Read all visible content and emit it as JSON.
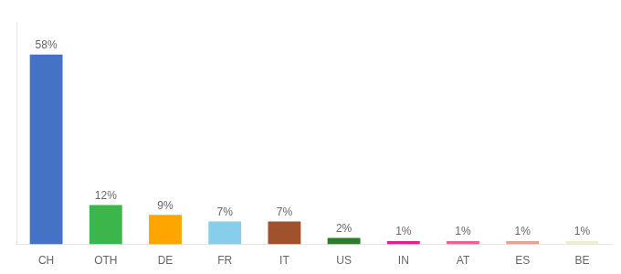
{
  "chart_data": {
    "type": "bar",
    "categories": [
      "CH",
      "OTH",
      "DE",
      "FR",
      "IT",
      "US",
      "IN",
      "AT",
      "ES",
      "BE"
    ],
    "values": [
      58,
      12,
      9,
      7,
      7,
      2,
      1,
      1,
      1,
      1
    ],
    "value_labels": [
      "58%",
      "12%",
      "9%",
      "7%",
      "7%",
      "2%",
      "1%",
      "1%",
      "1%",
      "1%"
    ],
    "colors": [
      "#4472C4",
      "#3CB54A",
      "#FFA500",
      "#87CEEB",
      "#A0522D",
      "#2D7A2D",
      "#E91E8C",
      "#F06090",
      "#E8A090",
      "#F0EDD0"
    ],
    "ylim": [
      0,
      68
    ],
    "yticks": [],
    "grid": false,
    "data_labels": true,
    "tick_labels": "x"
  }
}
